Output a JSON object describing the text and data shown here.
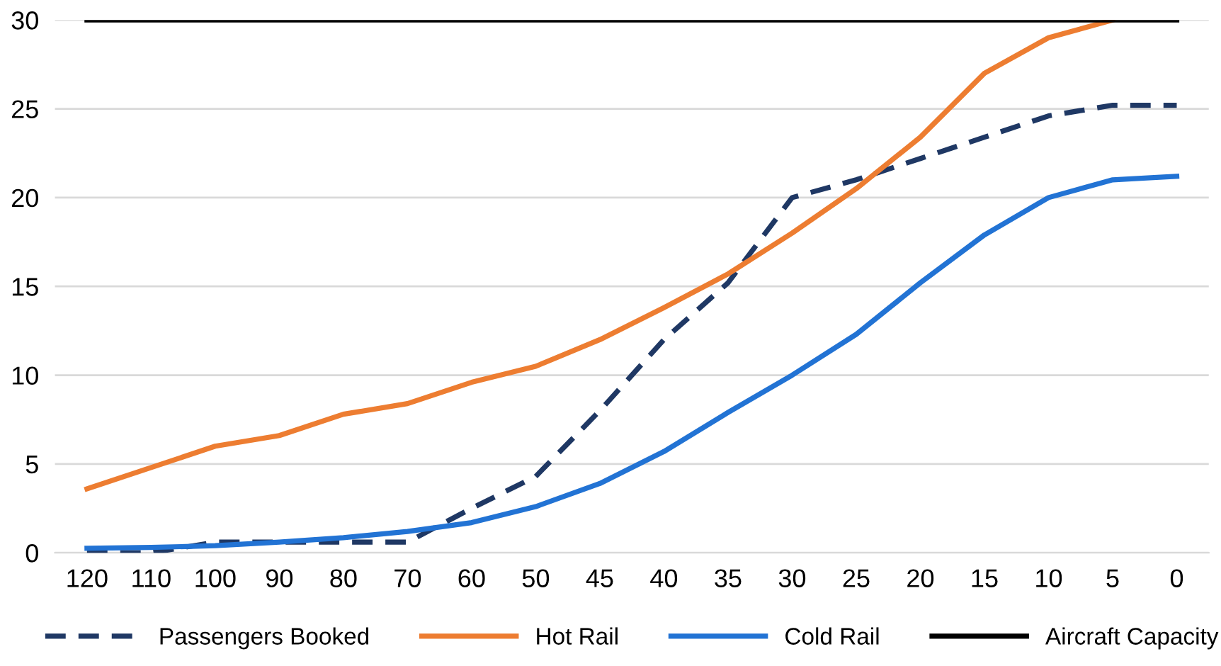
{
  "chart_data": {
    "type": "line",
    "categories": [
      "120",
      "110",
      "100",
      "90",
      "80",
      "70",
      "60",
      "50",
      "45",
      "40",
      "35",
      "30",
      "25",
      "20",
      "15",
      "10",
      "5",
      "0"
    ],
    "series": [
      {
        "name": "Passengers Booked",
        "color": "#1f3864",
        "line_style": "dashed",
        "values": [
          0,
          0,
          0.6,
          0.6,
          0.6,
          0.6,
          2.5,
          4.3,
          8,
          12,
          15.2,
          20,
          21,
          22.2,
          23.4,
          24.6,
          25.2,
          25.2
        ]
      },
      {
        "name": "Hot Rail",
        "color": "#ed7d31",
        "line_style": "solid",
        "values": [
          3.6,
          4.8,
          6,
          6.6,
          7.8,
          8.4,
          9.6,
          10.5,
          12,
          13.8,
          15.7,
          18,
          20.5,
          23.4,
          27,
          29,
          30,
          null
        ]
      },
      {
        "name": "Cold Rail",
        "color": "#2273d4",
        "line_style": "solid",
        "values": [
          0.25,
          0.3,
          0.4,
          0.6,
          0.85,
          1.2,
          1.7,
          2.6,
          3.9,
          5.7,
          7.9,
          10,
          12.3,
          15.2,
          17.9,
          20,
          21,
          21.2
        ]
      },
      {
        "name": "Aircraft Capacity",
        "color": "#000000",
        "line_style": "solid",
        "values": [
          30,
          30,
          30,
          30,
          30,
          30,
          30,
          30,
          30,
          30,
          30,
          30,
          30,
          30,
          30,
          30,
          30,
          30
        ]
      }
    ],
    "ylim": [
      0,
      30
    ],
    "yticks": [
      0,
      5,
      10,
      15,
      20,
      25,
      30
    ],
    "grid": "y",
    "legend": "bottom",
    "marker": "none"
  }
}
